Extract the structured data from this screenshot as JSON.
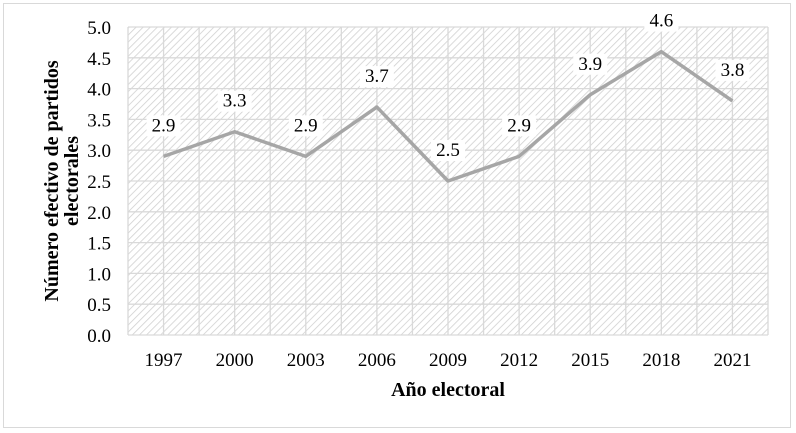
{
  "chart_data": {
    "type": "line",
    "title": "",
    "xlabel": "Año electoral",
    "ylabel_lines": [
      "Número efectivo de partidos",
      "electorales"
    ],
    "ylabel": "Número efectivo de partidos electorales",
    "categories": [
      "1997",
      "2000",
      "2003",
      "2006",
      "2009",
      "2012",
      "2015",
      "2018",
      "2021"
    ],
    "series": [
      {
        "name": "Número efectivo de partidos electorales",
        "values": [
          2.9,
          3.3,
          2.9,
          3.7,
          2.5,
          2.9,
          3.9,
          4.6,
          3.8
        ],
        "labels": [
          "2.9",
          "3.3",
          "2.9",
          "3.7",
          "2.5",
          "2.9",
          "3.9",
          "4.6",
          "3.8"
        ],
        "color": "#a6a6a6"
      }
    ],
    "ylim": [
      0,
      5
    ],
    "yticks": [
      "0.0",
      "0.5",
      "1.0",
      "1.5",
      "2.0",
      "2.5",
      "3.0",
      "3.5",
      "4.0",
      "4.5",
      "5.0"
    ],
    "grid": true,
    "legend": "none",
    "plot_background": "diagonal-hatch"
  },
  "colors": {
    "line": "#a6a6a6",
    "grid": "#d9d9d9",
    "hatch": "#d0d0d0",
    "frame": "#d9d9d9"
  }
}
